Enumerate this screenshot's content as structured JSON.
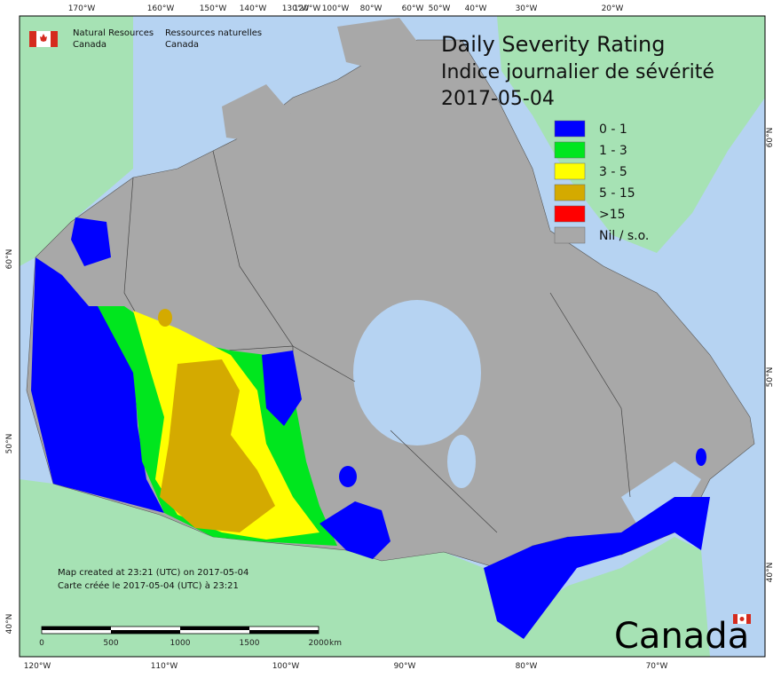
{
  "header": {
    "agency_en": "Natural Resources",
    "agency_en_2": "Canada",
    "agency_fr": "Ressources naturelles",
    "agency_fr_2": "Canada"
  },
  "title": {
    "line1": "Daily Severity Rating",
    "line2": "Indice journalier de sévérité",
    "date": "2017-05-04"
  },
  "legend": [
    {
      "label": "0 - 1",
      "color": "#0000ff"
    },
    {
      "label": "1 - 3",
      "color": "#00e61e"
    },
    {
      "label": "3 - 5",
      "color": "#ffff00"
    },
    {
      "label": "5 - 15",
      "color": "#d4aa00"
    },
    {
      "label": ">15",
      "color": "#ff0000"
    },
    {
      "label": "Nil / s.o.",
      "color": "#a8a8a8"
    }
  ],
  "top_ticks": [
    "170°W",
    "160°W",
    "150°W",
    "140°W",
    "130°W",
    "120°W",
    "100°W",
    "80°W",
    "60°W",
    "50°W",
    "40°W",
    "30°W",
    "20°W"
  ],
  "bottom_ticks": [
    "120°W",
    "110°W",
    "100°W",
    "90°W",
    "80°W",
    "70°W"
  ],
  "left_ticks": [
    "60°N",
    "50°N",
    "40°N"
  ],
  "right_ticks": [
    "60°N",
    "50°N",
    "40°N"
  ],
  "credits": {
    "line_en": "Map created at 23:21 (UTC) on 2017-05-04",
    "line_fr": "Carte créée le 2017-05-04 (UTC) à 23:21"
  },
  "scale": {
    "labels": [
      "0",
      "500",
      "1000",
      "1500",
      "2000"
    ],
    "unit": "km"
  },
  "wordmark": "Canada"
}
